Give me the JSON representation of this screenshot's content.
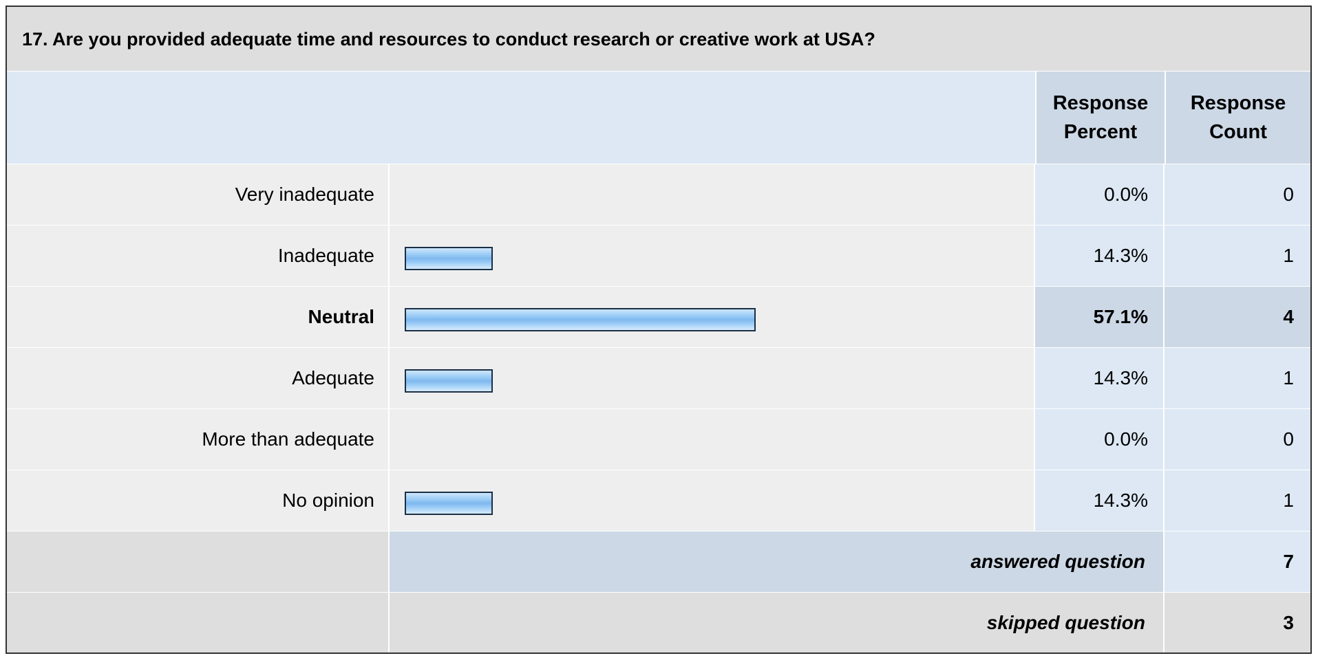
{
  "question": {
    "title": "17. Are you provided adequate time and resources to conduct research or creative work at USA?"
  },
  "headers": {
    "percent_line1": "Response",
    "percent_line2": "Percent",
    "count_line1": "Response",
    "count_line2": "Count"
  },
  "chart_data": {
    "type": "bar",
    "title": "17. Are you provided adequate time and resources to conduct research or creative work at USA?",
    "categories": [
      "Very inadequate",
      "Inadequate",
      "Neutral",
      "Adequate",
      "More than adequate",
      "No opinion"
    ],
    "series": [
      {
        "values": [
          0.0,
          14.3,
          57.1,
          14.3,
          0.0,
          14.3
        ]
      }
    ],
    "percent_labels": [
      "0.0%",
      "14.3%",
      "57.1%",
      "14.3%",
      "0.0%",
      "14.3%"
    ],
    "counts": [
      0,
      1,
      4,
      1,
      0,
      1
    ],
    "highlight_index": 2,
    "xlim": [
      0,
      100
    ],
    "bar_color": "#9ccdf6",
    "bar_border_color": "#1a2e46"
  },
  "summary": {
    "answered_label": "answered question",
    "answered_value": "7",
    "skipped_label": "skipped question",
    "skipped_value": "3"
  }
}
